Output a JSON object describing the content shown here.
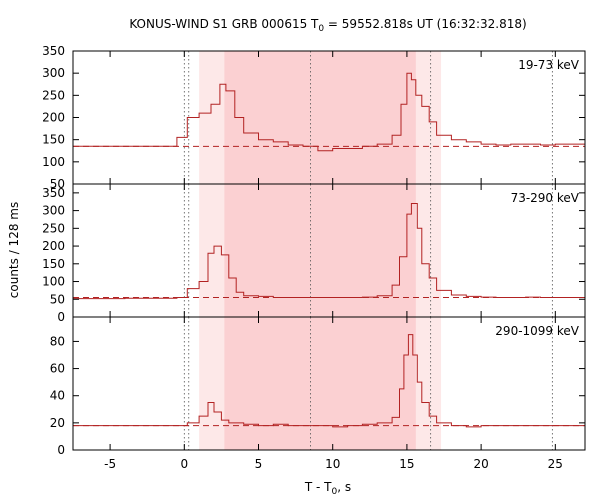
{
  "title": "KONUS-WIND S1 GRB 000615 T",
  "title_sub": "0",
  "title_rest": " = 59552.818s UT (16:32:32.818)",
  "ylabel": "counts / 128 ms",
  "xlabel_main": "T - T",
  "xlabel_sub": "0",
  "xlabel_rest": ", s",
  "chart_data": [
    {
      "type": "line",
      "name": "19-73 keV",
      "xlim": [
        -7.5,
        27
      ],
      "ylim": [
        50,
        350
      ],
      "yticks": [
        50,
        100,
        150,
        200,
        250,
        300,
        350
      ],
      "xticks": [
        -5,
        0,
        5,
        10,
        15,
        20,
        25
      ],
      "background_level": 135,
      "x": [
        -7.5,
        -4,
        -0.5,
        0.2,
        1.0,
        1.8,
        2.4,
        2.8,
        3.4,
        4.0,
        5.0,
        6.0,
        7.0,
        8.0,
        9.0,
        10.0,
        11.0,
        12.0,
        13.0,
        14.0,
        14.6,
        15.0,
        15.3,
        15.6,
        16.0,
        16.5,
        17.0,
        18.0,
        19.0,
        20.0,
        21.0,
        22.0,
        23.0,
        24.0,
        25.0,
        26.0,
        27.0
      ],
      "y": [
        135,
        135,
        155,
        200,
        210,
        230,
        275,
        260,
        200,
        165,
        150,
        145,
        138,
        135,
        125,
        130,
        130,
        135,
        140,
        160,
        230,
        300,
        285,
        250,
        225,
        190,
        160,
        150,
        145,
        140,
        138,
        140,
        140,
        138,
        140,
        140,
        140
      ]
    },
    {
      "type": "line",
      "name": "73-290 keV",
      "xlim": [
        -7.5,
        27
      ],
      "ylim": [
        0,
        375
      ],
      "yticks": [
        0,
        50,
        100,
        150,
        200,
        250,
        300,
        350
      ],
      "xticks": [
        -5,
        0,
        5,
        10,
        15,
        20,
        25
      ],
      "background_level": 55,
      "x": [
        -7.5,
        -4,
        -0.5,
        0.2,
        1.0,
        1.6,
        2.0,
        2.5,
        3.0,
        3.5,
        4.0,
        5.0,
        6.0,
        7.0,
        8.0,
        9.0,
        10.0,
        11.0,
        12.0,
        13.0,
        14.0,
        14.5,
        15.0,
        15.3,
        15.7,
        16.0,
        16.5,
        17.0,
        18.0,
        19.0,
        20.0,
        21.0,
        22.0,
        23.0,
        24.0,
        25.0,
        26.0,
        27.0
      ],
      "y": [
        52,
        53,
        55,
        80,
        100,
        180,
        200,
        175,
        110,
        70,
        60,
        58,
        55,
        55,
        55,
        55,
        55,
        55,
        56,
        60,
        90,
        170,
        290,
        320,
        250,
        150,
        110,
        75,
        62,
        58,
        56,
        55,
        55,
        56,
        55,
        55,
        55,
        55
      ]
    },
    {
      "type": "line",
      "name": "290-1099 keV",
      "xlim": [
        -7.5,
        27
      ],
      "ylim": [
        0,
        98
      ],
      "yticks": [
        0,
        20,
        40,
        60,
        80
      ],
      "xticks": [
        -5,
        0,
        5,
        10,
        15,
        20,
        25
      ],
      "background_level": 18,
      "x": [
        -7.5,
        -4,
        -0.5,
        0.2,
        1.0,
        1.6,
        2.0,
        2.5,
        3.0,
        4.0,
        5.0,
        6.0,
        7.0,
        8.0,
        9.0,
        10.0,
        11.0,
        12.0,
        13.0,
        14.0,
        14.5,
        14.8,
        15.1,
        15.4,
        15.7,
        16.0,
        16.5,
        17.0,
        18.0,
        19.0,
        20.0,
        21.0,
        22.0,
        23.0,
        24.0,
        25.0,
        26.0,
        27.0
      ],
      "y": [
        18,
        18,
        18,
        20,
        25,
        35,
        28,
        22,
        20,
        19,
        18,
        19,
        18,
        18,
        18,
        17,
        18,
        19,
        20,
        24,
        45,
        70,
        85,
        70,
        50,
        35,
        25,
        20,
        18,
        17,
        18,
        18,
        18,
        18,
        18,
        18,
        18,
        18
      ]
    }
  ],
  "shared": {
    "shade_outer": [
      1.0,
      17.3
    ],
    "shade_inner": [
      2.7,
      15.6
    ],
    "vlines": [
      0,
      0.3,
      8.5,
      16.6,
      24.8
    ]
  },
  "colors": {
    "curve": "#b22222",
    "dashed": "#b22222",
    "shade_outer": "#fde8e8",
    "shade_inner": "#fbd0d2",
    "axis": "#000000"
  }
}
